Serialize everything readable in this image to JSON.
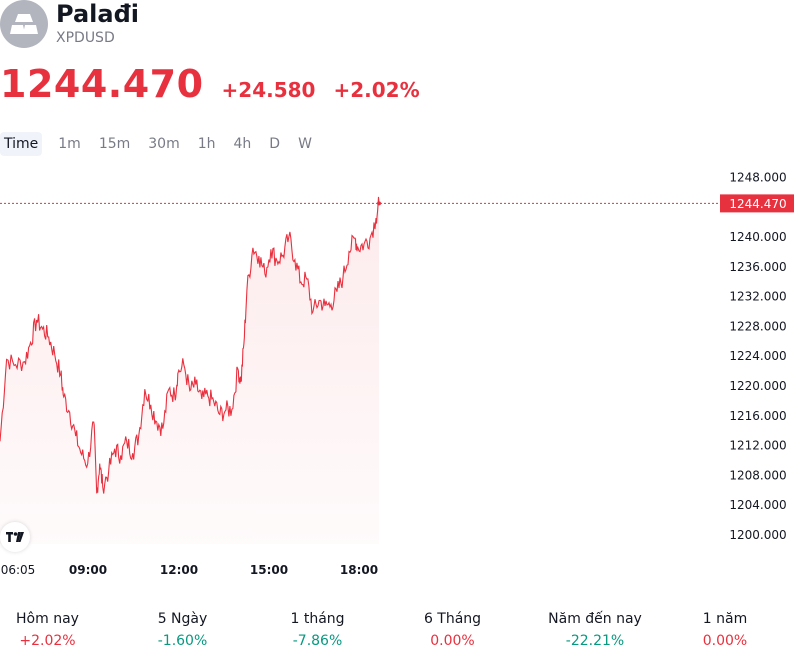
{
  "header": {
    "name": "Palađi",
    "ticker": "XPDUSD",
    "price": "1244.470",
    "change": "+24.580",
    "change_pct": "+2.02%",
    "color_up": "#e8313f",
    "color_down": "#089981"
  },
  "tabs": [
    "Time",
    "1m",
    "15m",
    "30m",
    "1h",
    "4h",
    "D",
    "W"
  ],
  "performance": [
    {
      "label": "Hôm nay",
      "value": "+2.02%",
      "trend": "up"
    },
    {
      "label": "5 Ngày",
      "value": "-1.60%",
      "trend": "down"
    },
    {
      "label": "1 tháng",
      "value": "-7.86%",
      "trend": "down"
    },
    {
      "label": "6 Tháng",
      "value": "0.00%",
      "trend": "up"
    },
    {
      "label": "Năm đến nay",
      "value": "-22.21%",
      "trend": "down"
    },
    {
      "label": "1 năm",
      "value": "0.00%",
      "trend": "up"
    }
  ],
  "chart_data": {
    "type": "area",
    "x_tick_labels": [
      "06:05",
      "09:00",
      "12:00",
      "15:00",
      "18:00"
    ],
    "y_tick_labels": [
      "1248.000",
      "1244.470",
      "1240.000",
      "1236.000",
      "1232.000",
      "1228.000",
      "1224.000",
      "1220.000",
      "1216.000",
      "1212.000",
      "1208.000",
      "1204.000",
      "1200.000"
    ],
    "y_ticks": [
      1248,
      1240,
      1236,
      1232,
      1228,
      1224,
      1220,
      1216,
      1212,
      1208,
      1204,
      1200
    ],
    "ylim": [
      1198.7,
      1250.3
    ],
    "last_price": 1244.47,
    "last_label": "1244.470",
    "x_hours": [
      6.08,
      6.3,
      6.6,
      6.9,
      7.1,
      7.3,
      7.5,
      7.7,
      7.9,
      8.1,
      8.2,
      8.4,
      8.6,
      8.8,
      9.0,
      9.2,
      9.3,
      9.4,
      9.5,
      9.7,
      9.9,
      10.1,
      10.3,
      10.5,
      10.7,
      10.9,
      11.1,
      11.3,
      11.5,
      11.7,
      11.9,
      12.0,
      12.2,
      12.4,
      12.6,
      12.8,
      13.0,
      13.2,
      13.4,
      13.6,
      13.8,
      14.0,
      14.1,
      14.2,
      14.3,
      14.5,
      14.7,
      14.9,
      15.1,
      15.3,
      15.5,
      15.7,
      15.9,
      16.1,
      16.3,
      16.5,
      16.7,
      16.9,
      17.1,
      17.3,
      17.5,
      17.7,
      17.9,
      18.0,
      18.2,
      18.4,
      18.6,
      18.7
    ],
    "values": [
      1212.5,
      1223.5,
      1222.8,
      1223.2,
      1225.8,
      1228.8,
      1227.6,
      1226.5,
      1224.2,
      1221.5,
      1218.5,
      1216.4,
      1213.2,
      1210.7,
      1209.5,
      1215.1,
      1205.5,
      1209.5,
      1206.4,
      1208.5,
      1211.5,
      1210.6,
      1212.5,
      1210.9,
      1213.3,
      1219.5,
      1217.4,
      1215.1,
      1214.2,
      1219.5,
      1218.6,
      1221.6,
      1222.8,
      1219.3,
      1220.1,
      1218.2,
      1218.6,
      1217.8,
      1216.1,
      1216.7,
      1216.8,
      1222.2,
      1220.5,
      1225.6,
      1232.8,
      1238.5,
      1237.4,
      1235.0,
      1238.3,
      1236.8,
      1237.5,
      1240.0,
      1236.9,
      1233.9,
      1234.3,
      1229.9,
      1231.4,
      1230.7,
      1230.9,
      1232.6,
      1234.5,
      1238.0,
      1239.8,
      1238.5,
      1239.0,
      1239.8,
      1242.5,
      1244.47
    ]
  }
}
